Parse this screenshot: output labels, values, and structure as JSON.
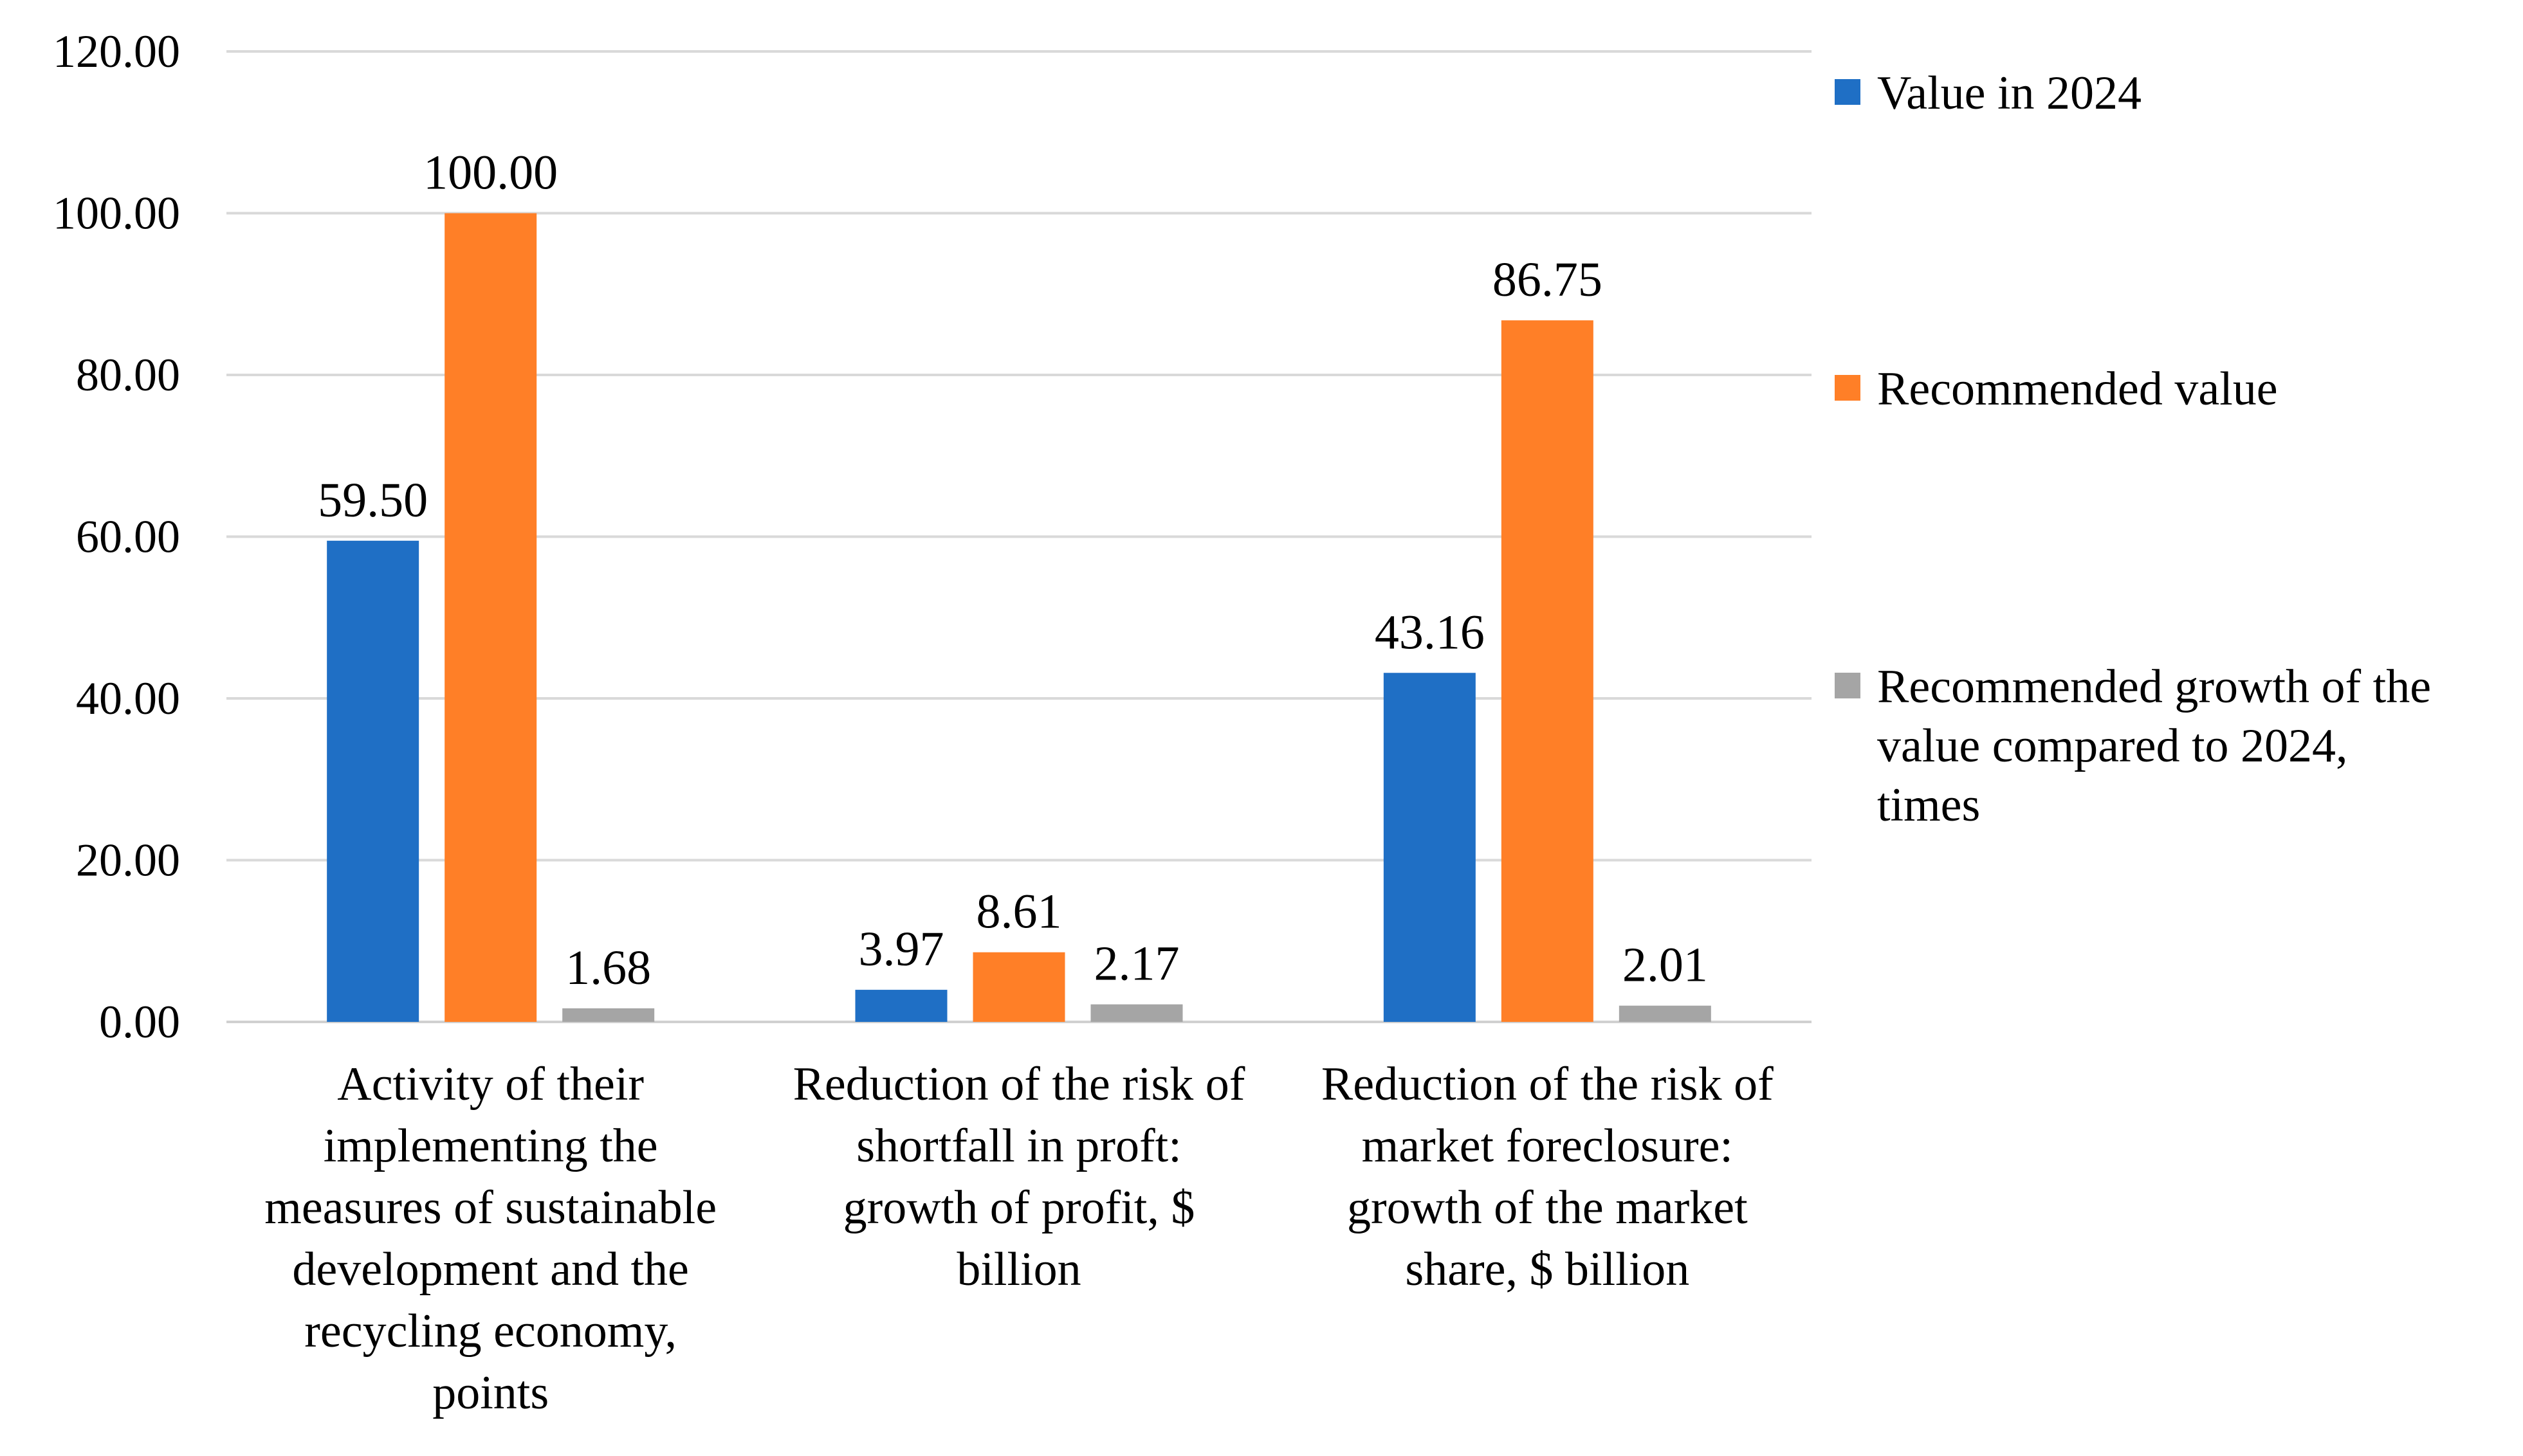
{
  "chart_data": {
    "type": "bar",
    "categories": [
      [
        "Activity of their",
        "implementing the",
        "measures of sustainable",
        "development and the",
        "recycling economy,",
        "points"
      ],
      [
        "Reduction of the risk of",
        "shortfall in proft:",
        "growth of profit, $",
        "billion"
      ],
      [
        "Reduction of the risk of",
        "market foreclosure:",
        "growth of the market",
        "share, $ billion"
      ]
    ],
    "series": [
      {
        "name": [
          "Value in 2024"
        ],
        "color": "#1F6FC5",
        "values": [
          59.5,
          3.97,
          43.16
        ],
        "labels": [
          "59.50",
          "3.97",
          "43.16"
        ]
      },
      {
        "name": [
          "Recommended value"
        ],
        "color": "#FF7F27",
        "values": [
          100.0,
          8.61,
          86.75
        ],
        "labels": [
          "100.00",
          "8.61",
          "86.75"
        ]
      },
      {
        "name": [
          "Recommended growth of the",
          "value compared to 2024,",
          "times"
        ],
        "color": "#A5A5A5",
        "values": [
          1.68,
          2.17,
          2.01
        ],
        "labels": [
          "1.68",
          "2.17",
          "2.01"
        ]
      }
    ],
    "yticks": [
      "0.00",
      "20.00",
      "40.00",
      "60.00",
      "80.00",
      "100.00",
      "120.00"
    ],
    "ylim": [
      0,
      120
    ],
    "grid": true,
    "legend": "right",
    "title": "",
    "xlabel": "",
    "ylabel": ""
  }
}
